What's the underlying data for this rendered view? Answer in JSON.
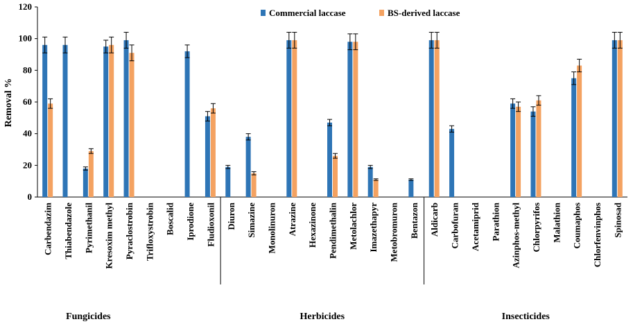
{
  "chart_data": {
    "type": "bar",
    "title": "",
    "xlabel": "",
    "ylabel": "Removal %",
    "ylim": [
      0,
      120
    ],
    "yticks": [
      0,
      20,
      40,
      60,
      80,
      100,
      120
    ],
    "grid": false,
    "legend_position": "top-center",
    "categories": [
      "Carbendazim",
      "Thiabendazole",
      "Pyrimethanil",
      "Kresoxim methyl",
      "Pyraclostrobin",
      "Trifloxystrobin",
      "Boscalid",
      "Iprodione",
      "Fludioxonil",
      "Diuron",
      "Simazine",
      "Monolinuron",
      "Atrazine",
      "Hexazinone",
      "Pendimethalin",
      "Metolachlor",
      "Imazethapyr",
      "Metobromuron",
      "Bentazon",
      "Aldicarb",
      "Carbofuran",
      "Acetamiprid",
      "Parathion",
      "Azinphos-methyl",
      "Chlorpyrifos",
      "Malathion",
      "Coumaphos",
      "Chlorfenvinphos",
      "Spinosad"
    ],
    "series": [
      {
        "name": "Commercial laccase",
        "color": "#2E75B6",
        "values": [
          96,
          96,
          18,
          95,
          99,
          0,
          0,
          92,
          51,
          19,
          38,
          0,
          99,
          0,
          47,
          98,
          19,
          0,
          11,
          99,
          43,
          0,
          0,
          59,
          54,
          0,
          75,
          0,
          99
        ],
        "errors": [
          5,
          5,
          1,
          4,
          5,
          0,
          0,
          4,
          3,
          1,
          2,
          0,
          5,
          0,
          2,
          5,
          1,
          0,
          0.5,
          5,
          2,
          0,
          0,
          3,
          3,
          0,
          4,
          0,
          5
        ]
      },
      {
        "name": "BS-derived laccase",
        "color": "#F4A261",
        "values": [
          59,
          0,
          29,
          96,
          91,
          0,
          0,
          0,
          56,
          0,
          15,
          0,
          99,
          0,
          26,
          98,
          11,
          0,
          0,
          99,
          0,
          0,
          0,
          57,
          61,
          0,
          83,
          0,
          99
        ],
        "errors": [
          3,
          0,
          1.5,
          5,
          5,
          0,
          0,
          0,
          3,
          0,
          1,
          0,
          5,
          0,
          1.5,
          5,
          0.5,
          0,
          0,
          5,
          0,
          0,
          0,
          3,
          3,
          0,
          4,
          0,
          5
        ]
      }
    ],
    "groups": [
      {
        "name": "Fungicides",
        "start": 0,
        "end": 8
      },
      {
        "name": "Herbicides",
        "start": 9,
        "end": 18
      },
      {
        "name": "Insecticides",
        "start": 19,
        "end": 28
      }
    ]
  }
}
